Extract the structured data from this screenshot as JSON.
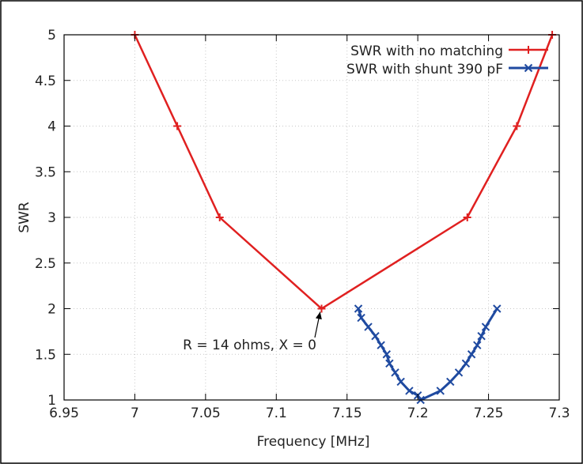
{
  "chart_data": {
    "type": "line",
    "title": "",
    "xlabel": "Frequency [MHz]",
    "ylabel": "SWR",
    "xlim": [
      6.95,
      7.3
    ],
    "ylim": [
      1,
      5
    ],
    "xticks": [
      6.95,
      7,
      7.05,
      7.1,
      7.15,
      7.2,
      7.25,
      7.3
    ],
    "xtick_labels": [
      "6.95",
      "7",
      "7.05",
      "7.1",
      "7.15",
      "7.2",
      "7.25",
      "7.3"
    ],
    "yticks": [
      1,
      1.5,
      2,
      2.5,
      3,
      3.5,
      4,
      4.5,
      5
    ],
    "ytick_labels": [
      "1",
      "1.5",
      "2",
      "2.5",
      "3",
      "3.5",
      "4",
      "4.5",
      "5"
    ],
    "grid": true,
    "legend_position": "top-right",
    "series": [
      {
        "name": "SWR with no matching",
        "color": "#e02020",
        "marker": "plus",
        "x": [
          7.0,
          7.03,
          7.06,
          7.132,
          7.235,
          7.27,
          7.295
        ],
        "y": [
          5,
          4,
          3,
          2,
          3,
          4,
          5
        ]
      },
      {
        "name": "SWR with shunt 390 pF",
        "color": "#1f4aa0",
        "marker": "x",
        "x": [
          7.158,
          7.16,
          7.165,
          7.17,
          7.174,
          7.178,
          7.18,
          7.184,
          7.188,
          7.194,
          7.2,
          7.202,
          7.216,
          7.223,
          7.229,
          7.234,
          7.238,
          7.242,
          7.245,
          7.248,
          7.256
        ],
        "y": [
          2.0,
          1.9,
          1.8,
          1.7,
          1.6,
          1.5,
          1.4,
          1.3,
          1.2,
          1.1,
          1.05,
          1.0,
          1.1,
          1.2,
          1.3,
          1.4,
          1.5,
          1.6,
          1.7,
          1.8,
          2.0
        ]
      }
    ],
    "annotations": [
      {
        "text": "R = 14 ohms, X = 0",
        "point_x": 7.131,
        "point_y": 2.0
      }
    ]
  }
}
